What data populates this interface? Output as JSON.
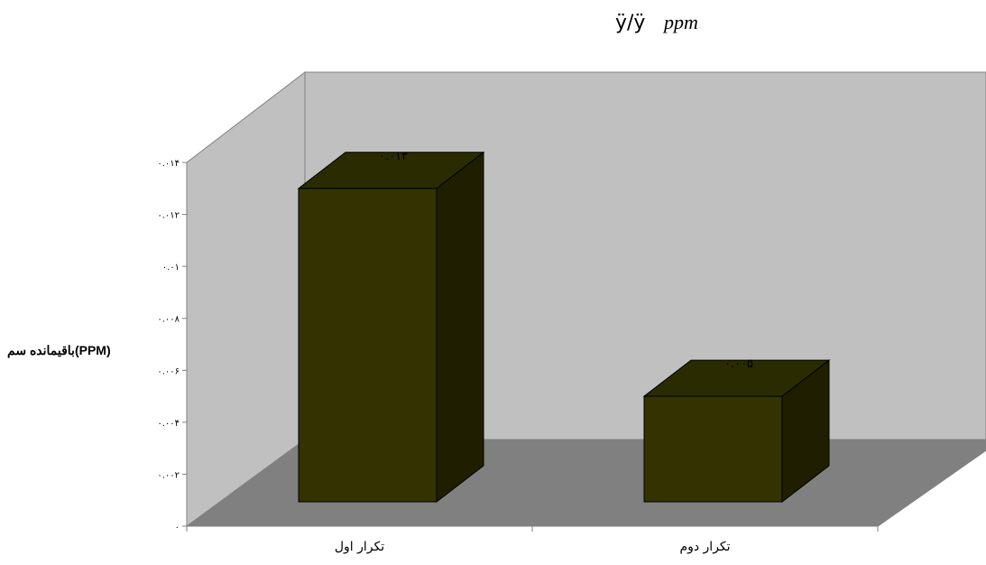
{
  "title": {
    "garbled": "ÿ/ÿ",
    "unit": "ppm"
  },
  "colors": {
    "bar_front": "#333300",
    "bar_top": "#2b2b00",
    "bar_side": "#1f1f00",
    "back_wall": "#c0c0c0",
    "side_wall": "#c0c0c0",
    "floor": "#808080"
  },
  "chart_data": {
    "type": "bar",
    "three_d": true,
    "categories": [
      "تکرار اول",
      "تکرار دوم"
    ],
    "values": [
      0.013,
      0.005
    ],
    "data_labels": [
      "۰.۰۱۳",
      "۰.۰۰۵"
    ],
    "ylabel": "باقیمانده سم(PPM)",
    "xlabel": "",
    "ylim": [
      0,
      0.014
    ],
    "yticks": [
      0,
      0.002,
      0.004,
      0.006,
      0.008,
      0.01,
      0.012,
      0.014
    ],
    "ytick_labels": [
      "۰",
      "۰.۰۰۲",
      "۰.۰۰۴",
      "۰.۰۰۶",
      "۰.۰۰۸",
      "۰.۰۱",
      "۰.۰۱۲",
      "۰.۰۱۴"
    ],
    "grid": false,
    "legend": "none"
  }
}
